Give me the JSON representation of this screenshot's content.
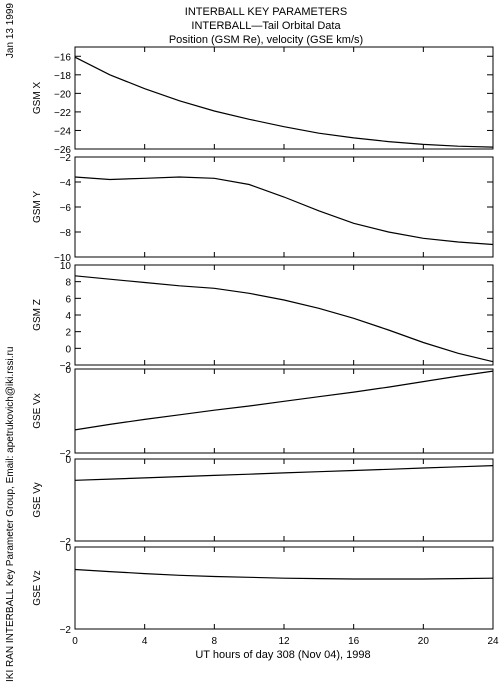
{
  "header": {
    "title_lines": [
      "INTERBALL KEY PARAMETERS",
      "INTERBALL—Tail Orbital Data",
      "Position (GSM Re), velocity (GSE km/s)"
    ],
    "date_stamp": "Jan 13 1999",
    "credit": "IKI RAN INTERBALL Key Parameter Group, Email: apetrukovich@iki.rssi.ru"
  },
  "chart_data": {
    "type": "line",
    "xlabel": "UT hours of day 308 (Nov 04), 1998",
    "x_ticks": [
      0,
      4,
      8,
      12,
      16,
      20,
      24
    ],
    "xlim": [
      0,
      24
    ],
    "grid": false,
    "panels": [
      {
        "ylabel": "GSM X",
        "ylim": [
          -26,
          -15
        ],
        "y_ticks": [
          -16,
          -18,
          -20,
          -22,
          -24,
          -26
        ],
        "x": [
          0,
          2,
          4,
          6,
          8,
          10,
          12,
          14,
          16,
          18,
          20,
          22,
          24
        ],
        "y": [
          -16.1,
          -18.0,
          -19.5,
          -20.8,
          -21.9,
          -22.8,
          -23.6,
          -24.3,
          -24.8,
          -25.2,
          -25.5,
          -25.7,
          -25.8
        ]
      },
      {
        "ylabel": "GSM Y",
        "ylim": [
          -10,
          -2
        ],
        "y_ticks": [
          -2,
          -4,
          -6,
          -8,
          -10
        ],
        "x": [
          0,
          2,
          4,
          6,
          8,
          10,
          12,
          14,
          16,
          18,
          20,
          22,
          24
        ],
        "y": [
          -3.6,
          -3.8,
          -3.7,
          -3.6,
          -3.7,
          -4.2,
          -5.2,
          -6.3,
          -7.3,
          -8.0,
          -8.5,
          -8.8,
          -9.0
        ]
      },
      {
        "ylabel": "GSM Z",
        "ylim": [
          -2,
          10
        ],
        "y_ticks": [
          10,
          8,
          6,
          4,
          2,
          0,
          -2
        ],
        "x": [
          0,
          2,
          4,
          6,
          8,
          10,
          12,
          14,
          16,
          18,
          20,
          22,
          24
        ],
        "y": [
          8.7,
          8.3,
          7.9,
          7.5,
          7.2,
          6.6,
          5.8,
          4.8,
          3.6,
          2.2,
          0.7,
          -0.6,
          -1.6
        ]
      },
      {
        "ylabel": "GSE Vx",
        "ylim": [
          -2,
          0
        ],
        "y_ticks": [
          0,
          -2
        ],
        "x": [
          0,
          2,
          4,
          6,
          8,
          10,
          12,
          14,
          16,
          18,
          20,
          22,
          24
        ],
        "y": [
          -1.45,
          -1.32,
          -1.2,
          -1.09,
          -0.98,
          -0.88,
          -0.77,
          -0.66,
          -0.55,
          -0.43,
          -0.3,
          -0.17,
          -0.05
        ]
      },
      {
        "ylabel": "GSE Vy",
        "ylim": [
          -2,
          0
        ],
        "y_ticks": [
          0,
          -2
        ],
        "x": [
          0,
          2,
          4,
          6,
          8,
          10,
          12,
          14,
          16,
          18,
          20,
          22,
          24
        ],
        "y": [
          -0.52,
          -0.49,
          -0.46,
          -0.43,
          -0.4,
          -0.37,
          -0.34,
          -0.31,
          -0.28,
          -0.25,
          -0.22,
          -0.19,
          -0.16
        ]
      },
      {
        "ylabel": "GSE Vz",
        "ylim": [
          -2,
          0
        ],
        "y_ticks": [
          0,
          -2
        ],
        "x": [
          0,
          2,
          4,
          6,
          8,
          10,
          12,
          14,
          16,
          18,
          20,
          22,
          24
        ],
        "y": [
          -0.55,
          -0.6,
          -0.65,
          -0.69,
          -0.72,
          -0.74,
          -0.76,
          -0.77,
          -0.78,
          -0.78,
          -0.78,
          -0.77,
          -0.76
        ]
      }
    ]
  }
}
